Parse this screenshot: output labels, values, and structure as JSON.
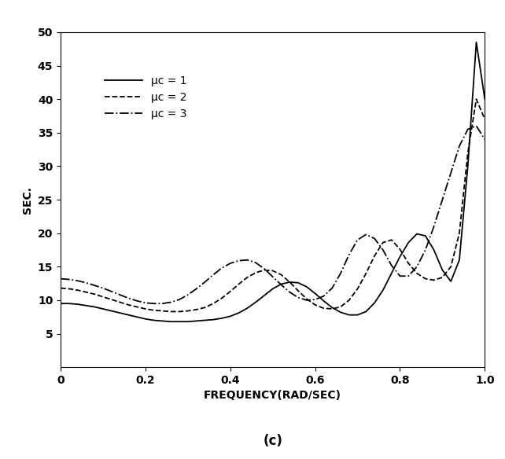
{
  "chart_data": {
    "type": "line",
    "title": "(c)",
    "x_label": "FREQUENCY(RAD/SEC)",
    "y_label": "SEC.",
    "x": [
      0,
      0.02,
      0.04,
      0.06,
      0.08,
      0.1,
      0.12,
      0.14,
      0.16,
      0.18,
      0.2,
      0.22,
      0.24,
      0.26,
      0.28,
      0.3,
      0.32,
      0.34,
      0.36,
      0.38,
      0.4,
      0.42,
      0.44,
      0.46,
      0.48,
      0.5,
      0.52,
      0.54,
      0.56,
      0.58,
      0.6,
      0.62,
      0.64,
      0.66,
      0.68,
      0.7,
      0.72,
      0.74,
      0.76,
      0.78,
      0.8,
      0.82,
      0.84,
      0.86,
      0.88,
      0.9,
      0.92,
      0.94,
      0.96,
      0.98,
      1.0
    ],
    "series": [
      {
        "name": "μc = 1",
        "color": "#000000",
        "line_style": "solid",
        "values": [
          9.5,
          9.5,
          9.4,
          9.2,
          9.0,
          8.7,
          8.4,
          8.1,
          7.8,
          7.5,
          7.2,
          7.0,
          6.9,
          6.8,
          6.8,
          6.8,
          6.9,
          7.0,
          7.1,
          7.3,
          7.6,
          8.1,
          8.8,
          9.7,
          10.7,
          11.7,
          12.4,
          12.7,
          12.6,
          12.0,
          11.0,
          9.9,
          8.9,
          8.2,
          7.8,
          7.8,
          8.3,
          9.6,
          11.5,
          14.0,
          16.5,
          18.6,
          19.9,
          19.6,
          17.5,
          14.5,
          12.8,
          16.0,
          30.0,
          48.5,
          40.0
        ]
      },
      {
        "name": "μc = 2",
        "color": "#000000",
        "line_style": "dashed",
        "values": [
          11.8,
          11.7,
          11.5,
          11.2,
          10.9,
          10.5,
          10.1,
          9.7,
          9.3,
          9.0,
          8.7,
          8.5,
          8.4,
          8.3,
          8.3,
          8.4,
          8.6,
          8.9,
          9.5,
          10.3,
          11.3,
          12.4,
          13.4,
          14.1,
          14.5,
          14.4,
          13.8,
          12.7,
          11.4,
          10.2,
          9.3,
          8.8,
          8.7,
          9.0,
          10.0,
          11.7,
          14.0,
          16.6,
          18.6,
          19.0,
          17.6,
          15.5,
          14.0,
          13.2,
          13.0,
          13.4,
          15.0,
          20.0,
          32.0,
          40.0,
          37.0
        ]
      },
      {
        "name": "μc = 3",
        "color": "#000000",
        "line_style": "dashdot",
        "values": [
          13.2,
          13.1,
          12.9,
          12.6,
          12.2,
          11.8,
          11.3,
          10.8,
          10.3,
          9.9,
          9.6,
          9.5,
          9.5,
          9.7,
          10.1,
          10.8,
          11.7,
          12.7,
          13.8,
          14.8,
          15.5,
          15.9,
          16.0,
          15.6,
          14.7,
          13.5,
          12.3,
          11.2,
          10.4,
          10.0,
          10.1,
          10.6,
          11.8,
          14.0,
          16.8,
          19.0,
          19.8,
          19.2,
          17.5,
          15.2,
          13.6,
          13.6,
          15.0,
          17.5,
          21.0,
          25.0,
          29.0,
          33.0,
          35.5,
          36.0,
          34.0
        ]
      }
    ],
    "xlim": [
      0,
      1.0
    ],
    "xticks": [
      0,
      0.2,
      0.4,
      0.6,
      0.8,
      1.0
    ],
    "ylim": [
      0,
      50
    ],
    "yticks": [
      5,
      10,
      15,
      20,
      25,
      30,
      35,
      40,
      45,
      50
    ],
    "legend": "upper left",
    "grid": false
  }
}
